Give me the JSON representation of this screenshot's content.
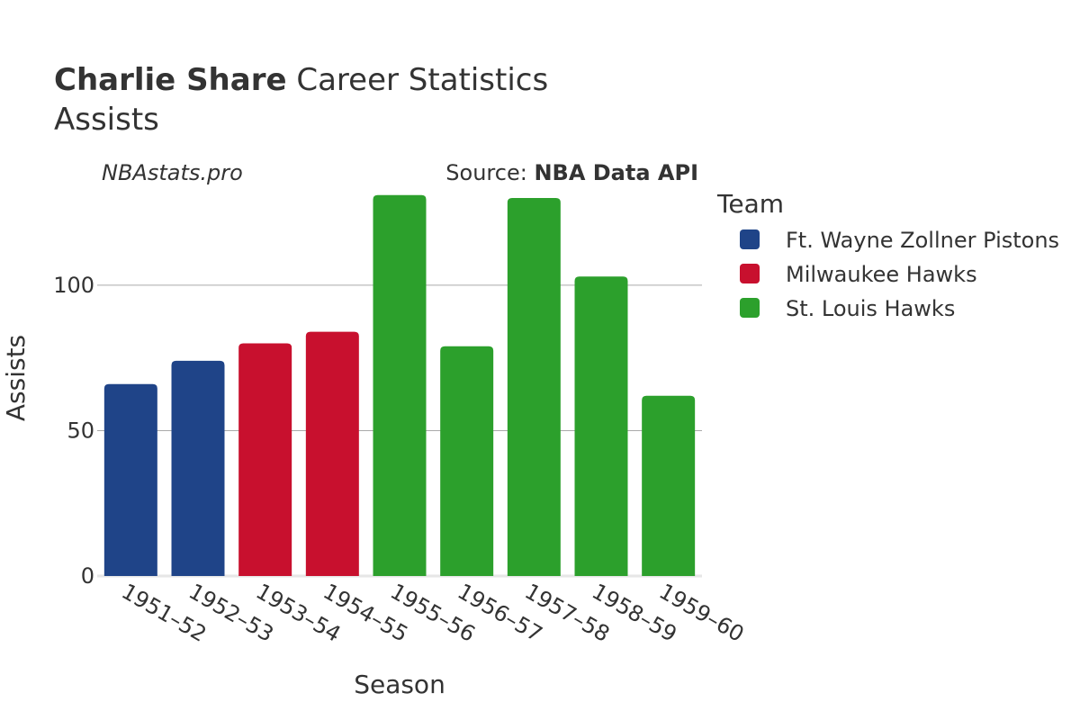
{
  "header": {
    "title_bold": "Charlie Share",
    "title_rest": " Career Statistics",
    "subtitle": "Assists"
  },
  "credits": {
    "site": "NBAstats.pro",
    "source_prefix": "Source: ",
    "source_name": "NBA Data API"
  },
  "chart_data": {
    "type": "bar",
    "title": "Charlie Share Career Statistics",
    "subtitle": "Assists",
    "xlabel": "Season",
    "ylabel": "Assists",
    "ylim": [
      0,
      130
    ],
    "yticks": [
      0,
      50,
      100
    ],
    "grid": true,
    "legend_title": "Team",
    "legend_position": "right",
    "categories": [
      "1951–52",
      "1952–53",
      "1953–54",
      "1954–55",
      "1955–56",
      "1956–57",
      "1957–58",
      "1958–59",
      "1959–60"
    ],
    "values": [
      66,
      74,
      80,
      84,
      131,
      79,
      130,
      103,
      62
    ],
    "teams": [
      "Ft. Wayne Zollner Pistons",
      "Ft. Wayne Zollner Pistons",
      "Milwaukee Hawks",
      "Milwaukee Hawks",
      "St. Louis Hawks",
      "St. Louis Hawks",
      "St. Louis Hawks",
      "St. Louis Hawks",
      "St. Louis Hawks"
    ],
    "series": [
      {
        "name": "Ft. Wayne Zollner Pistons",
        "color": "#1f4488"
      },
      {
        "name": "Milwaukee Hawks",
        "color": "#c8102e"
      },
      {
        "name": "St. Louis Hawks",
        "color": "#2ca02c"
      }
    ]
  }
}
